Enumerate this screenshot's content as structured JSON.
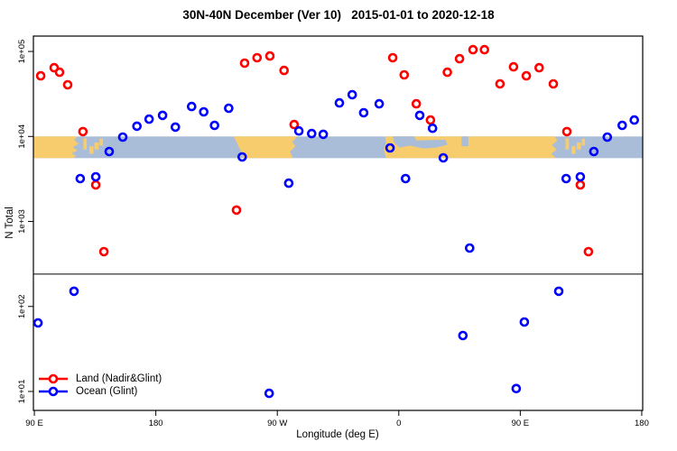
{
  "chart_data": {
    "type": "scatter",
    "title": "30N-40N December (Ver 10)   2015-01-01 to 2020-12-18",
    "xlabel": "Longitude (deg E)",
    "ylabel": "N Total",
    "x_domain": [
      89.3,
      540.7
    ],
    "y_domain_log": [
      0.777,
      5.181
    ],
    "y_scale": "log10",
    "grid": false,
    "legend_position": "bottom-left",
    "axes": {
      "x": {
        "label": "Longitude (deg E)",
        "note": "longitude wraps: 90E to 180, 90W, 0, 90E, 180",
        "ticks": [
          {
            "v": 90,
            "label": "90 E"
          },
          {
            "v": 180,
            "label": "180"
          },
          {
            "v": 270,
            "label": "90 W"
          },
          {
            "v": 360,
            "label": "0"
          },
          {
            "v": 450,
            "label": "90 E"
          },
          {
            "v": 540,
            "label": "180"
          }
        ]
      },
      "y": {
        "label": "N Total",
        "ticks": [
          {
            "v": 10,
            "label": "1e+01"
          },
          {
            "v": 100,
            "label": "1e+02"
          },
          {
            "v": 1000,
            "label": "1e+03"
          },
          {
            "v": 10000,
            "label": "1e+04"
          },
          {
            "v": 100000,
            "label": "1e+05"
          }
        ]
      }
    },
    "threshold_line": {
      "y_value": 240,
      "color": "#000000"
    },
    "map_band": {
      "top_value": 10000,
      "bottom_value": 5560,
      "ocean_color": "#a9bcd8",
      "land_color": "#f7cc6d",
      "shapes": [
        {
          "name": "asia-east",
          "type": "polygon",
          "pts": [
            [
              89.3,
              0
            ],
            [
              121.5,
              0
            ],
            [
              119.5,
              0.18
            ],
            [
              123,
              0.33
            ],
            [
              118.5,
              0.5
            ],
            [
              122,
              0.64
            ],
            [
              117.5,
              0.78
            ],
            [
              121,
              0.9
            ],
            [
              118.5,
              1
            ],
            [
              89.3,
              1
            ]
          ]
        },
        {
          "name": "korea",
          "type": "rect",
          "x0": 126.3,
          "x1": 128.8,
          "f0": 0.08,
          "f1": 0.6
        },
        {
          "name": "japan-sw",
          "type": "rect",
          "x0": 130.8,
          "x1": 133.8,
          "f0": 0.45,
          "f1": 0.8
        },
        {
          "name": "japan-honshu",
          "type": "rect",
          "x0": 134.5,
          "x1": 137.8,
          "f0": 0.28,
          "f1": 0.6
        },
        {
          "name": "japan-ne",
          "type": "rect",
          "x0": 138.3,
          "x1": 140.8,
          "f0": 0.1,
          "f1": 0.42
        },
        {
          "name": "north-america",
          "type": "polygon",
          "pts": [
            [
              237.8,
              0
            ],
            [
              285,
              0
            ],
            [
              281,
              0.25
            ],
            [
              283.5,
              0.45
            ],
            [
              279.5,
              0.7
            ],
            [
              281.5,
              1
            ],
            [
              245.5,
              1
            ],
            [
              243.5,
              0.75
            ],
            [
              240.5,
              0.35
            ]
          ]
        },
        {
          "name": "eurafrica-asia",
          "type": "polygon",
          "pts": [
            [
              350,
              0
            ],
            [
              475.5,
              0
            ],
            [
              477.5,
              0.18
            ],
            [
              473.5,
              0.4
            ],
            [
              477,
              0.6
            ],
            [
              473,
              0.8
            ],
            [
              476.5,
              1
            ],
            [
              350.5,
              1
            ],
            [
              349,
              0.6
            ],
            [
              350.5,
              0.3
            ]
          ]
        },
        {
          "name": "mediterranean-west",
          "type": "polygon",
          "ocean": true,
          "pts": [
            [
              355.5,
              0
            ],
            [
              371.5,
              0
            ],
            [
              373.5,
              0.22
            ],
            [
              388.5,
              0.5
            ],
            [
              378.5,
              0.56
            ],
            [
              368,
              0.42
            ],
            [
              360.5,
              0.52
            ],
            [
              356.5,
              0.28
            ]
          ]
        },
        {
          "name": "mediterranean-east",
          "type": "polygon",
          "ocean": true,
          "pts": [
            [
              373.5,
              0.18
            ],
            [
              394.5,
              0.15
            ],
            [
              396,
              0.38
            ],
            [
              387.5,
              0.52
            ],
            [
              375.5,
              0.5
            ]
          ]
        },
        {
          "name": "caspian",
          "type": "rect",
          "ocean": true,
          "x0": 406.5,
          "x1": 411.5,
          "f0": 0,
          "f1": 0.45
        },
        {
          "name": "korea-2",
          "type": "rect",
          "x0": 483.5,
          "x1": 486,
          "f0": 0.08,
          "f1": 0.6
        },
        {
          "name": "japan2-sw",
          "type": "rect",
          "x0": 488,
          "x1": 491,
          "f0": 0.45,
          "f1": 0.8
        },
        {
          "name": "japan2-honshu",
          "type": "rect",
          "x0": 491.8,
          "x1": 495,
          "f0": 0.28,
          "f1": 0.6
        },
        {
          "name": "japan2-ne",
          "type": "rect",
          "x0": 495.6,
          "x1": 498,
          "f0": 0.1,
          "f1": 0.42
        }
      ]
    },
    "series": [
      {
        "name": "Land (Nadir&Glint)",
        "color": "#ff0000",
        "marker": "open-circle",
        "points": [
          [
            94.7,
            51700
          ],
          [
            104.7,
            64400
          ],
          [
            108.7,
            57000
          ],
          [
            114.7,
            40500
          ],
          [
            126,
            11400
          ],
          [
            135.5,
            2690
          ],
          [
            141.5,
            441
          ],
          [
            239.8,
            1360
          ],
          [
            245.8,
            72800
          ],
          [
            255,
            84300
          ],
          [
            264.5,
            88500
          ],
          [
            275,
            59800
          ],
          [
            282.5,
            13800
          ],
          [
            355.5,
            84300
          ],
          [
            364,
            53000
          ],
          [
            373,
            24200
          ],
          [
            383.5,
            15600
          ],
          [
            396,
            57000
          ],
          [
            405,
            82200
          ],
          [
            415,
            105000
          ],
          [
            423.5,
            105000
          ],
          [
            435,
            41500
          ],
          [
            445,
            66000
          ],
          [
            454.5,
            51700
          ],
          [
            464,
            64400
          ],
          [
            474.5,
            41500
          ],
          [
            484.5,
            11400
          ],
          [
            494.5,
            2690
          ],
          [
            500.5,
            441
          ]
        ]
      },
      {
        "name": "Ocean (Glint)",
        "color": "#0000ff",
        "marker": "open-circle",
        "points": [
          [
            92.7,
            64
          ],
          [
            119.4,
            151
          ],
          [
            124,
            3190
          ],
          [
            135.5,
            3350
          ],
          [
            145.5,
            6640
          ],
          [
            155.5,
            9820
          ],
          [
            166,
            13200
          ],
          [
            175,
            16000
          ],
          [
            185,
            17700
          ],
          [
            194.5,
            12900
          ],
          [
            206.5,
            22500
          ],
          [
            215.5,
            19500
          ],
          [
            223.5,
            13500
          ],
          [
            234,
            21500
          ],
          [
            244,
            5740
          ],
          [
            264,
            9.5
          ],
          [
            278.5,
            2820
          ],
          [
            286,
            11600
          ],
          [
            295.5,
            10800
          ],
          [
            304,
            10600
          ],
          [
            316,
            24800
          ],
          [
            325.5,
            31000
          ],
          [
            334,
            19000
          ],
          [
            345.5,
            24200
          ],
          [
            353.5,
            7330
          ],
          [
            365,
            3190
          ],
          [
            375.5,
            17700
          ],
          [
            385,
            12500
          ],
          [
            393,
            5600
          ],
          [
            407.5,
            45.5
          ],
          [
            412.5,
            487
          ],
          [
            447,
            10.8
          ],
          [
            453,
            65.6
          ],
          [
            478.5,
            151
          ],
          [
            484,
            3190
          ],
          [
            494.5,
            3350
          ],
          [
            504.5,
            6640
          ],
          [
            514.5,
            9820
          ],
          [
            525.5,
            13500
          ],
          [
            534.5,
            15600
          ]
        ]
      }
    ]
  }
}
